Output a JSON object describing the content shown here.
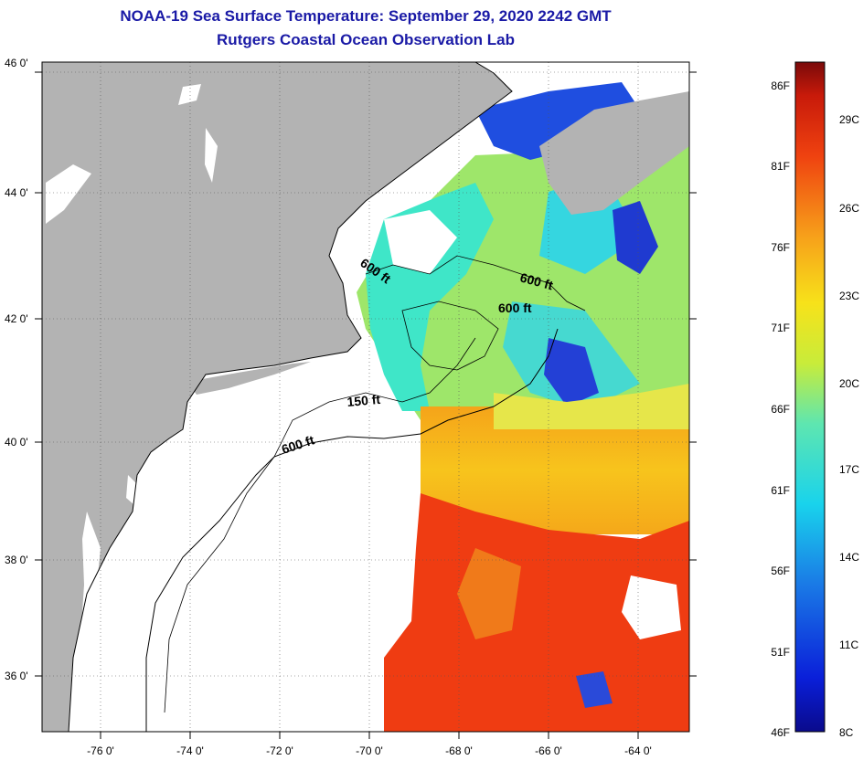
{
  "header": {
    "title": "NOAA-19 Sea Surface Temperature:  September 29, 2020 2242 GMT",
    "subtitle": "Rutgers Coastal Ocean Observation Lab"
  },
  "map": {
    "lat_labels": [
      "46 0'",
      "44 0'",
      "42 0'",
      "40 0'",
      "38 0'",
      "36 0'"
    ],
    "lon_labels": [
      "-76 0'",
      "-74 0'",
      "-72 0'",
      "-70 0'",
      "-68 0'",
      "-66 0'",
      "-64 0'"
    ],
    "depth_labels": [
      "600 ft",
      "600 ft",
      "600 ft",
      "150 ft",
      "600 ft"
    ],
    "colors": {
      "land": "#b3b3b3",
      "cloud": "#ffffff",
      "cold": "#1a3ad9",
      "cool": "#29d9e6",
      "mild": "#8ee66a",
      "warm": "#f5c21a",
      "hot": "#ef3a10"
    }
  },
  "colorbar": {
    "fahrenheit": [
      "86F",
      "81F",
      "76F",
      "71F",
      "66F",
      "61F",
      "56F",
      "51F",
      "46F"
    ],
    "celsius": [
      "29C",
      "26C",
      "23C",
      "20C",
      "17C",
      "14C",
      "11C",
      "8C"
    ]
  }
}
